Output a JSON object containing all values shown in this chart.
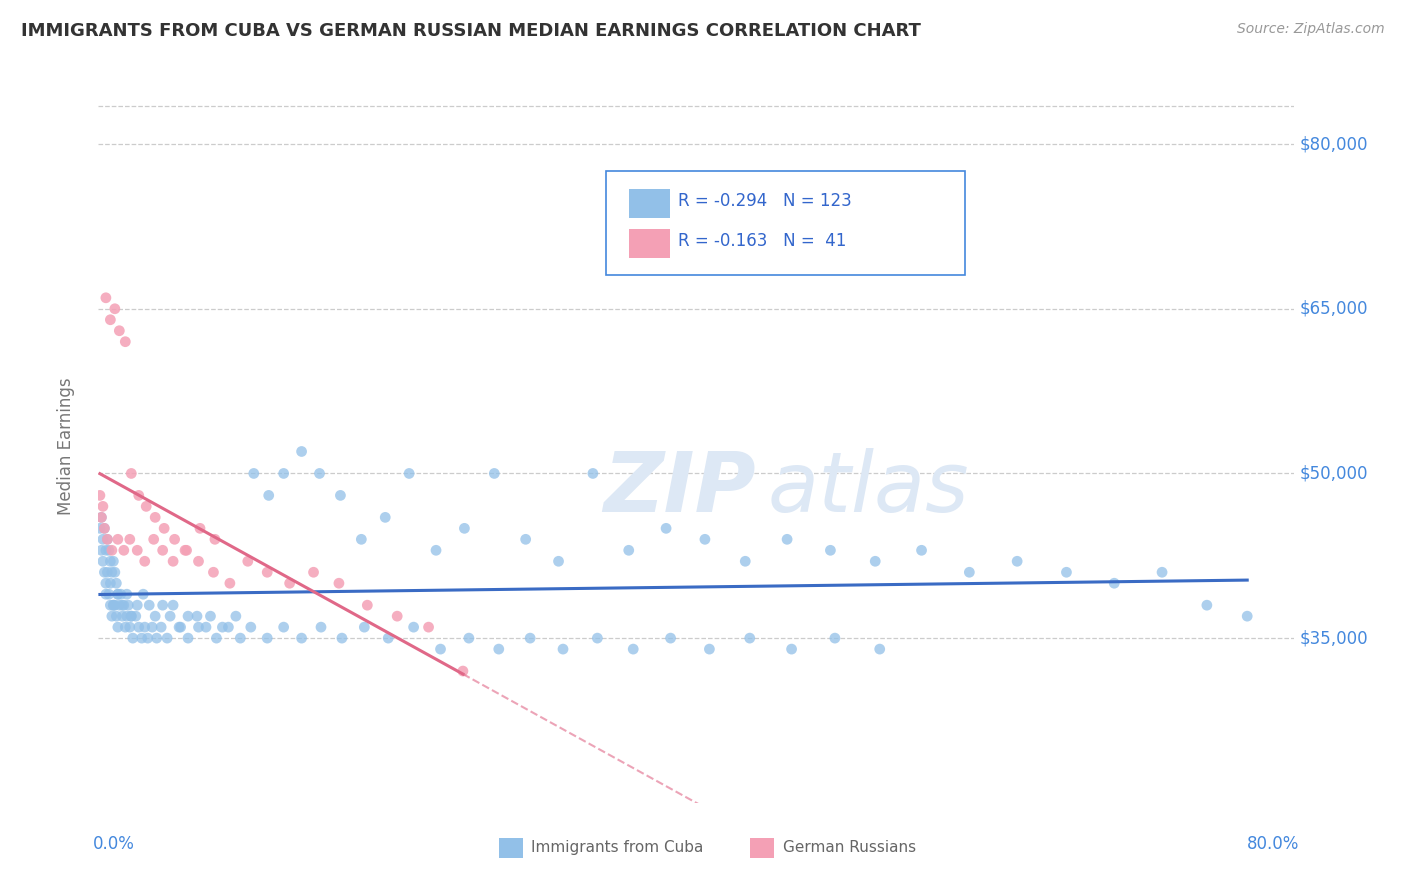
{
  "title": "IMMIGRANTS FROM CUBA VS GERMAN RUSSIAN MEDIAN EARNINGS CORRELATION CHART",
  "source": "Source: ZipAtlas.com",
  "ylabel": "Median Earnings",
  "ytick_labels": [
    "$35,000",
    "$50,000",
    "$65,000",
    "$80,000"
  ],
  "ytick_vals": [
    35000,
    50000,
    65000,
    80000
  ],
  "xlim": [
    0.0,
    0.8
  ],
  "ylim": [
    20000,
    85000
  ],
  "cuba_R": -0.294,
  "cuba_N": 123,
  "german_R": -0.163,
  "german_N": 41,
  "cuba_color": "#92c0e8",
  "german_color": "#f4a0b5",
  "cuba_line_color": "#3a6bc4",
  "german_line_color": "#e06888",
  "watermark_color": "#dde8f5",
  "title_color": "#333333",
  "tick_color": "#4488dd",
  "grid_color": "#cccccc",
  "legend_border_color": "#4488dd",
  "legend_text_color": "#3366cc",
  "bottom_legend_text_color": "#666666",
  "background_color": "#ffffff",
  "cuba_x": [
    0.001,
    0.002,
    0.002,
    0.003,
    0.003,
    0.004,
    0.004,
    0.005,
    0.005,
    0.006,
    0.006,
    0.007,
    0.007,
    0.008,
    0.008,
    0.009,
    0.009,
    0.01,
    0.01,
    0.011,
    0.011,
    0.012,
    0.012,
    0.013,
    0.013,
    0.014,
    0.015,
    0.016,
    0.017,
    0.018,
    0.019,
    0.02,
    0.021,
    0.022,
    0.023,
    0.025,
    0.027,
    0.029,
    0.031,
    0.033,
    0.036,
    0.039,
    0.042,
    0.046,
    0.05,
    0.055,
    0.06,
    0.066,
    0.072,
    0.079,
    0.087,
    0.095,
    0.104,
    0.114,
    0.124,
    0.136,
    0.148,
    0.162,
    0.176,
    0.192,
    0.208,
    0.226,
    0.245,
    0.265,
    0.286,
    0.308,
    0.331,
    0.355,
    0.38,
    0.406,
    0.433,
    0.461,
    0.49,
    0.52,
    0.551,
    0.583,
    0.615,
    0.648,
    0.68,
    0.712,
    0.742,
    0.769,
    0.005,
    0.008,
    0.01,
    0.013,
    0.016,
    0.019,
    0.022,
    0.026,
    0.03,
    0.034,
    0.038,
    0.043,
    0.048,
    0.054,
    0.06,
    0.067,
    0.075,
    0.083,
    0.092,
    0.102,
    0.113,
    0.124,
    0.136,
    0.149,
    0.163,
    0.178,
    0.194,
    0.211,
    0.229,
    0.248,
    0.268,
    0.289,
    0.311,
    0.334,
    0.358,
    0.383,
    0.409,
    0.436,
    0.464,
    0.493,
    0.523
  ],
  "cuba_y": [
    45000,
    46000,
    43000,
    44000,
    42000,
    45000,
    41000,
    43000,
    40000,
    44000,
    41000,
    43000,
    39000,
    42000,
    38000,
    41000,
    37000,
    42000,
    38000,
    41000,
    38000,
    40000,
    37000,
    39000,
    36000,
    38000,
    39000,
    37000,
    38000,
    36000,
    37000,
    38000,
    36000,
    37000,
    35000,
    37000,
    36000,
    35000,
    36000,
    35000,
    36000,
    35000,
    36000,
    35000,
    38000,
    36000,
    35000,
    37000,
    36000,
    35000,
    36000,
    35000,
    50000,
    48000,
    50000,
    52000,
    50000,
    48000,
    44000,
    46000,
    50000,
    43000,
    45000,
    50000,
    44000,
    42000,
    50000,
    43000,
    45000,
    44000,
    42000,
    44000,
    43000,
    42000,
    43000,
    41000,
    42000,
    41000,
    40000,
    41000,
    38000,
    37000,
    39000,
    40000,
    38000,
    39000,
    38000,
    39000,
    37000,
    38000,
    39000,
    38000,
    37000,
    38000,
    37000,
    36000,
    37000,
    36000,
    37000,
    36000,
    37000,
    36000,
    35000,
    36000,
    35000,
    36000,
    35000,
    36000,
    35000,
    36000,
    34000,
    35000,
    34000,
    35000,
    34000,
    35000,
    34000,
    35000,
    34000,
    35000,
    34000,
    35000,
    34000
  ],
  "german_x": [
    0.001,
    0.003,
    0.005,
    0.008,
    0.011,
    0.014,
    0.018,
    0.022,
    0.027,
    0.032,
    0.038,
    0.044,
    0.051,
    0.059,
    0.068,
    0.078,
    0.002,
    0.004,
    0.006,
    0.009,
    0.013,
    0.017,
    0.021,
    0.026,
    0.031,
    0.037,
    0.043,
    0.05,
    0.058,
    0.067,
    0.077,
    0.088,
    0.1,
    0.113,
    0.128,
    0.144,
    0.161,
    0.18,
    0.2,
    0.221,
    0.244
  ],
  "german_y": [
    48000,
    47000,
    66000,
    64000,
    65000,
    63000,
    62000,
    50000,
    48000,
    47000,
    46000,
    45000,
    44000,
    43000,
    45000,
    44000,
    46000,
    45000,
    44000,
    43000,
    44000,
    43000,
    44000,
    43000,
    42000,
    44000,
    43000,
    42000,
    43000,
    42000,
    41000,
    40000,
    42000,
    41000,
    40000,
    41000,
    40000,
    38000,
    37000,
    36000,
    32000
  ]
}
